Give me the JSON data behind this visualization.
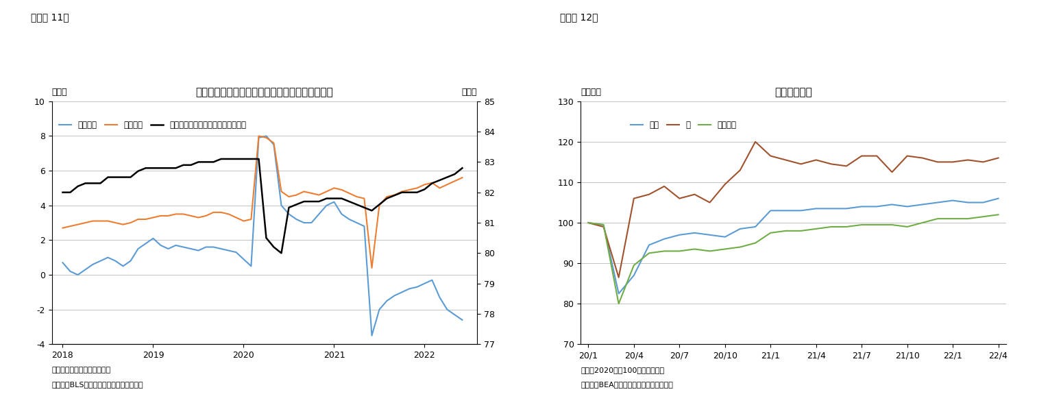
{
  "fig11": {
    "title": "時間当たり賃金およびプライムエイジ労働参加率",
    "ylabel_left": "（％）",
    "ylabel_right": "（％）",
    "ylim_left": [
      -4,
      10
    ],
    "ylim_right": [
      77,
      85
    ],
    "yticks_left": [
      -4,
      -2,
      0,
      2,
      4,
      6,
      8,
      10
    ],
    "yticks_right": [
      77,
      78,
      79,
      80,
      81,
      82,
      83,
      84,
      85
    ],
    "note1": "（注）民間部門、前年同月比",
    "note2": "（資料）BLSよりニッセイ基礎研究所作成",
    "legend": [
      "実質賃金",
      "名目賃金",
      "プライムエイジ労働参加率（右軸）"
    ],
    "colors": [
      "#5B9BD5",
      "#ED7D31",
      "#000000"
    ],
    "real_wage_x": [
      2018.0,
      2018.083,
      2018.167,
      2018.25,
      2018.333,
      2018.417,
      2018.5,
      2018.583,
      2018.667,
      2018.75,
      2018.833,
      2018.917,
      2019.0,
      2019.083,
      2019.167,
      2019.25,
      2019.333,
      2019.417,
      2019.5,
      2019.583,
      2019.667,
      2019.75,
      2019.833,
      2019.917,
      2020.0,
      2020.083,
      2020.167,
      2020.25,
      2020.333,
      2020.417,
      2020.5,
      2020.583,
      2020.667,
      2020.75,
      2020.833,
      2020.917,
      2021.0,
      2021.083,
      2021.167,
      2021.25,
      2021.333,
      2021.417,
      2021.5,
      2021.583,
      2021.667,
      2021.75,
      2021.833,
      2021.917,
      2022.0,
      2022.083,
      2022.167,
      2022.25,
      2022.333,
      2022.417
    ],
    "real_wage_y": [
      0.7,
      0.2,
      0.0,
      0.3,
      0.6,
      0.8,
      1.0,
      0.8,
      0.5,
      0.8,
      1.5,
      1.8,
      2.1,
      1.7,
      1.5,
      1.7,
      1.6,
      1.5,
      1.4,
      1.6,
      1.6,
      1.5,
      1.4,
      1.3,
      0.9,
      0.5,
      7.9,
      8.0,
      7.5,
      4.0,
      3.5,
      3.2,
      3.0,
      3.0,
      3.5,
      4.0,
      4.2,
      3.5,
      3.2,
      3.0,
      2.8,
      -3.5,
      -2.0,
      -1.5,
      -1.2,
      -1.0,
      -0.8,
      -0.7,
      -0.5,
      -0.3,
      -1.3,
      -2.0,
      -2.3,
      -2.6
    ],
    "nominal_wage_x": [
      2018.0,
      2018.083,
      2018.167,
      2018.25,
      2018.333,
      2018.417,
      2018.5,
      2018.583,
      2018.667,
      2018.75,
      2018.833,
      2018.917,
      2019.0,
      2019.083,
      2019.167,
      2019.25,
      2019.333,
      2019.417,
      2019.5,
      2019.583,
      2019.667,
      2019.75,
      2019.833,
      2019.917,
      2020.0,
      2020.083,
      2020.167,
      2020.25,
      2020.333,
      2020.417,
      2020.5,
      2020.583,
      2020.667,
      2020.75,
      2020.833,
      2020.917,
      2021.0,
      2021.083,
      2021.167,
      2021.25,
      2021.333,
      2021.417,
      2021.5,
      2021.583,
      2021.667,
      2021.75,
      2021.833,
      2021.917,
      2022.0,
      2022.083,
      2022.167,
      2022.25,
      2022.333,
      2022.417
    ],
    "nominal_wage_y": [
      2.7,
      2.8,
      2.9,
      3.0,
      3.1,
      3.1,
      3.1,
      3.0,
      2.9,
      3.0,
      3.2,
      3.2,
      3.3,
      3.4,
      3.4,
      3.5,
      3.5,
      3.4,
      3.3,
      3.4,
      3.6,
      3.6,
      3.5,
      3.3,
      3.1,
      3.2,
      8.0,
      7.9,
      7.6,
      4.8,
      4.5,
      4.6,
      4.8,
      4.7,
      4.6,
      4.8,
      5.0,
      4.9,
      4.7,
      4.5,
      4.4,
      0.4,
      4.0,
      4.5,
      4.6,
      4.8,
      4.9,
      5.0,
      5.2,
      5.3,
      5.0,
      5.2,
      5.4,
      5.6
    ],
    "prime_age_x": [
      2018.0,
      2018.083,
      2018.167,
      2018.25,
      2018.333,
      2018.417,
      2018.5,
      2018.583,
      2018.667,
      2018.75,
      2018.833,
      2018.917,
      2019.0,
      2019.083,
      2019.167,
      2019.25,
      2019.333,
      2019.417,
      2019.5,
      2019.583,
      2019.667,
      2019.75,
      2019.833,
      2019.917,
      2020.0,
      2020.083,
      2020.167,
      2020.25,
      2020.333,
      2020.417,
      2020.5,
      2020.583,
      2020.667,
      2020.75,
      2020.833,
      2020.917,
      2021.0,
      2021.083,
      2021.167,
      2021.25,
      2021.333,
      2021.417,
      2021.5,
      2021.583,
      2021.667,
      2021.75,
      2021.833,
      2021.917,
      2022.0,
      2022.083,
      2022.167,
      2022.25,
      2022.333,
      2022.417
    ],
    "prime_age_y": [
      82.0,
      82.0,
      82.2,
      82.3,
      82.3,
      82.3,
      82.5,
      82.5,
      82.5,
      82.5,
      82.7,
      82.8,
      82.8,
      82.8,
      82.8,
      82.8,
      82.9,
      82.9,
      83.0,
      83.0,
      83.0,
      83.1,
      83.1,
      83.1,
      83.1,
      83.1,
      83.1,
      80.5,
      80.2,
      80.0,
      81.5,
      81.6,
      81.7,
      81.7,
      81.7,
      81.8,
      81.8,
      81.8,
      81.7,
      81.6,
      81.5,
      81.4,
      81.6,
      81.8,
      81.9,
      82.0,
      82.0,
      82.0,
      82.1,
      82.3,
      82.4,
      82.5,
      82.6,
      82.8
    ],
    "xticks": [
      2018,
      2019,
      2020,
      2021,
      2022
    ],
    "xlim": [
      2017.88,
      2022.58
    ]
  },
  "fig12": {
    "title": "実質個人消費",
    "ylabel": "（指数）",
    "ylim": [
      70,
      130
    ],
    "yticks": [
      70,
      80,
      90,
      100,
      110,
      120,
      130
    ],
    "note1": "（注）2020年＝100として指数化",
    "note2": "（資料）BEAよりニッセイ基礎研究所作成",
    "legend": [
      "全体",
      "財",
      "サービス"
    ],
    "colors": [
      "#5B9BD5",
      "#A0522D",
      "#70AD47"
    ],
    "xtick_labels": [
      "20/1",
      "20/4",
      "20/7",
      "20/10",
      "21/1",
      "21/4",
      "21/7",
      "21/10",
      "22/1",
      "22/4"
    ],
    "total_x": [
      0,
      1,
      2,
      3,
      4,
      5,
      6,
      7,
      8,
      9,
      10,
      11,
      12,
      13,
      14,
      15,
      16,
      17,
      18,
      19,
      20,
      21,
      22,
      23,
      24,
      25,
      26,
      27
    ],
    "total_y": [
      100.0,
      99.5,
      82.5,
      87.0,
      94.5,
      96.0,
      97.0,
      97.5,
      97.0,
      96.5,
      98.5,
      99.0,
      103.0,
      103.0,
      103.0,
      103.5,
      103.5,
      103.5,
      104.0,
      104.0,
      104.5,
      104.0,
      104.5,
      105.0,
      105.5,
      105.0,
      105.0,
      106.0
    ],
    "goods_x": [
      0,
      1,
      2,
      3,
      4,
      5,
      6,
      7,
      8,
      9,
      10,
      11,
      12,
      13,
      14,
      15,
      16,
      17,
      18,
      19,
      20,
      21,
      22,
      23,
      24,
      25,
      26,
      27
    ],
    "goods_y": [
      100.0,
      99.0,
      86.5,
      106.0,
      107.0,
      109.0,
      106.0,
      107.0,
      105.0,
      109.5,
      113.0,
      120.0,
      116.5,
      115.5,
      114.5,
      115.5,
      114.5,
      114.0,
      116.5,
      116.5,
      112.5,
      116.5,
      116.0,
      115.0,
      115.0,
      115.5,
      115.0,
      116.0
    ],
    "services_x": [
      0,
      1,
      2,
      3,
      4,
      5,
      6,
      7,
      8,
      9,
      10,
      11,
      12,
      13,
      14,
      15,
      16,
      17,
      18,
      19,
      20,
      21,
      22,
      23,
      24,
      25,
      26,
      27
    ],
    "services_y": [
      100.0,
      99.5,
      80.0,
      89.5,
      92.5,
      93.0,
      93.0,
      93.5,
      93.0,
      93.5,
      94.0,
      95.0,
      97.5,
      98.0,
      98.0,
      98.5,
      99.0,
      99.0,
      99.5,
      99.5,
      99.5,
      99.0,
      100.0,
      101.0,
      101.0,
      101.0,
      101.5,
      102.0
    ],
    "xtick_positions": [
      0,
      3,
      6,
      9,
      12,
      15,
      18,
      21,
      24,
      27
    ]
  }
}
